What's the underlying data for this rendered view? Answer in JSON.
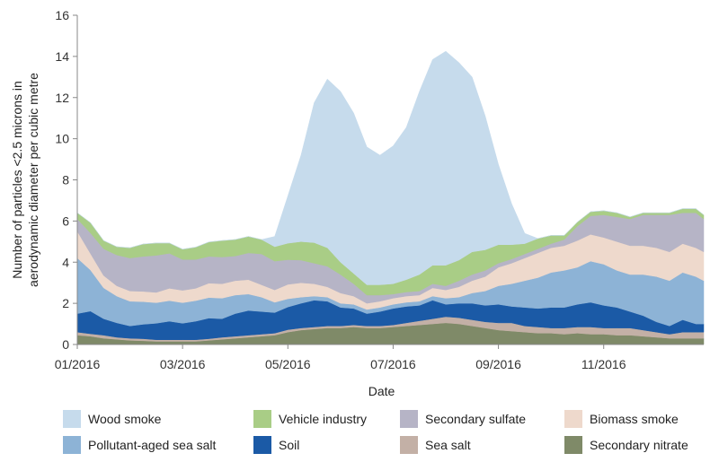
{
  "chart_data": {
    "type": "area",
    "stacked": true,
    "xlabel": "Date",
    "ylabel_line1": "Number of particles <2.5 microns in",
    "ylabel_line2": "aerodynamic diameter per cubic metre",
    "ylim": [
      0,
      16
    ],
    "yticks": [
      "0",
      "2",
      "4",
      "6",
      "8",
      "10",
      "12",
      "14",
      "16"
    ],
    "xlim": [
      0,
      11.9
    ],
    "xticks": [
      {
        "pos": 0,
        "label": "01/2016"
      },
      {
        "pos": 2,
        "label": "03/2016"
      },
      {
        "pos": 4,
        "label": "05/2016"
      },
      {
        "pos": 6,
        "label": "07/2016"
      },
      {
        "pos": 8,
        "label": "09/2016"
      },
      {
        "pos": 10,
        "label": "11/2016"
      }
    ],
    "x_unit": "months since 01/2016",
    "x": [
      0,
      0.25,
      0.5,
      0.75,
      1,
      1.25,
      1.5,
      1.75,
      2,
      2.25,
      2.5,
      2.75,
      3,
      3.25,
      3.5,
      3.75,
      4,
      4.25,
      4.5,
      4.75,
      5,
      5.25,
      5.5,
      5.75,
      6,
      6.25,
      6.5,
      6.75,
      7,
      7.25,
      7.5,
      7.75,
      8,
      8.25,
      8.5,
      8.75,
      9,
      9.25,
      9.5,
      9.75,
      10,
      10.25,
      10.5,
      10.75,
      11,
      11.25,
      11.5,
      11.75,
      11.9
    ],
    "series": [
      {
        "name": "Secondary nitrate",
        "color": "#7f8a68",
        "values": [
          0.45,
          0.4,
          0.3,
          0.25,
          0.2,
          0.18,
          0.15,
          0.15,
          0.15,
          0.15,
          0.2,
          0.25,
          0.3,
          0.35,
          0.4,
          0.45,
          0.6,
          0.7,
          0.75,
          0.8,
          0.8,
          0.85,
          0.8,
          0.8,
          0.85,
          0.9,
          0.95,
          1.0,
          1.05,
          1.0,
          0.9,
          0.8,
          0.7,
          0.65,
          0.6,
          0.55,
          0.55,
          0.5,
          0.55,
          0.5,
          0.5,
          0.45,
          0.45,
          0.4,
          0.35,
          0.3,
          0.3,
          0.3,
          0.3
        ]
      },
      {
        "name": "Sea salt",
        "color": "#c3b0a6",
        "values": [
          0.15,
          0.12,
          0.15,
          0.1,
          0.1,
          0.1,
          0.08,
          0.08,
          0.08,
          0.08,
          0.08,
          0.1,
          0.1,
          0.1,
          0.1,
          0.1,
          0.12,
          0.1,
          0.1,
          0.1,
          0.1,
          0.1,
          0.1,
          0.1,
          0.1,
          0.15,
          0.2,
          0.25,
          0.3,
          0.3,
          0.3,
          0.3,
          0.35,
          0.4,
          0.3,
          0.3,
          0.25,
          0.3,
          0.3,
          0.35,
          0.3,
          0.35,
          0.35,
          0.3,
          0.25,
          0.2,
          0.3,
          0.3,
          0.3
        ]
      },
      {
        "name": "Soil",
        "color": "#1b5aa6",
        "values": [
          0.9,
          1.1,
          0.8,
          0.7,
          0.6,
          0.7,
          0.8,
          0.9,
          0.8,
          0.9,
          1.0,
          0.9,
          1.1,
          1.2,
          1.1,
          1.0,
          1.1,
          1.2,
          1.3,
          1.2,
          0.9,
          0.8,
          0.6,
          0.7,
          0.8,
          0.8,
          0.75,
          0.9,
          0.6,
          0.7,
          0.8,
          0.8,
          0.9,
          0.8,
          0.9,
          0.9,
          1.0,
          1.0,
          1.1,
          1.2,
          1.1,
          1.0,
          0.8,
          0.7,
          0.5,
          0.4,
          0.6,
          0.4,
          0.4
        ]
      },
      {
        "name": "Pollutant-aged sea salt",
        "color": "#8db3d6",
        "values": [
          2.7,
          2.0,
          1.5,
          1.3,
          1.2,
          1.1,
          1.0,
          1.0,
          1.0,
          1.0,
          1.0,
          1.0,
          0.9,
          0.8,
          0.7,
          0.5,
          0.4,
          0.3,
          0.2,
          0.2,
          0.2,
          0.2,
          0.2,
          0.2,
          0.2,
          0.2,
          0.2,
          0.2,
          0.3,
          0.3,
          0.5,
          0.7,
          0.9,
          1.1,
          1.3,
          1.5,
          1.7,
          1.8,
          1.8,
          2.0,
          2.0,
          1.8,
          1.8,
          2.0,
          2.2,
          2.2,
          2.3,
          2.3,
          2.1
        ]
      },
      {
        "name": "Biomass smoke",
        "color": "#eed9cc",
        "values": [
          1.3,
          0.8,
          0.6,
          0.5,
          0.5,
          0.5,
          0.5,
          0.6,
          0.6,
          0.6,
          0.7,
          0.7,
          0.7,
          0.7,
          0.6,
          0.6,
          0.7,
          0.7,
          0.6,
          0.5,
          0.5,
          0.4,
          0.3,
          0.3,
          0.3,
          0.3,
          0.3,
          0.4,
          0.4,
          0.5,
          0.6,
          0.7,
          0.9,
          1.0,
          1.1,
          1.2,
          1.2,
          1.2,
          1.3,
          1.3,
          1.3,
          1.4,
          1.4,
          1.4,
          1.4,
          1.4,
          1.4,
          1.4,
          1.4
        ]
      },
      {
        "name": "Secondary sulfate",
        "color": "#b6b4c6",
        "values": [
          0.6,
          1.0,
          1.3,
          1.5,
          1.6,
          1.7,
          1.8,
          1.7,
          1.5,
          1.4,
          1.3,
          1.3,
          1.2,
          1.3,
          1.5,
          1.4,
          1.2,
          1.1,
          1.0,
          1.0,
          0.9,
          0.6,
          0.4,
          0.3,
          0.2,
          0.2,
          0.2,
          0.2,
          0.2,
          0.3,
          0.3,
          0.3,
          0.2,
          0.2,
          0.2,
          0.2,
          0.2,
          0.3,
          0.7,
          0.9,
          1.1,
          1.2,
          1.3,
          1.5,
          1.6,
          1.8,
          1.5,
          1.7,
          1.6
        ]
      },
      {
        "name": "Vehicle industry",
        "color": "#a9cd86",
        "values": [
          0.3,
          0.5,
          0.4,
          0.4,
          0.5,
          0.6,
          0.6,
          0.5,
          0.5,
          0.6,
          0.7,
          0.8,
          0.8,
          0.8,
          0.7,
          0.7,
          0.8,
          0.9,
          1.0,
          0.9,
          0.6,
          0.5,
          0.5,
          0.5,
          0.5,
          0.6,
          0.8,
          0.9,
          1.0,
          1.0,
          1.1,
          1.0,
          0.9,
          0.7,
          0.5,
          0.5,
          0.4,
          0.2,
          0.2,
          0.2,
          0.2,
          0.2,
          0.1,
          0.1,
          0.1,
          0.1,
          0.2,
          0.2,
          0.2
        ]
      },
      {
        "name": "Wood smoke",
        "color": "#c6dbec",
        "values": [
          0,
          0,
          0,
          0,
          0,
          0,
          0,
          0,
          0,
          0,
          0,
          0,
          0,
          0,
          0,
          0.5,
          2.3,
          4.2,
          6.8,
          8.2,
          8.3,
          7.8,
          6.7,
          6.3,
          6.7,
          7.4,
          8.9,
          10.0,
          10.4,
          9.6,
          8.5,
          6.5,
          3.9,
          2.0,
          0.5,
          0,
          0,
          0,
          0,
          0,
          0,
          0,
          0,
          0,
          0,
          0,
          0,
          0,
          0
        ]
      }
    ],
    "legend": {
      "placement": "bottom",
      "entries": [
        {
          "label": "Wood smoke",
          "color": "#c6dbec"
        },
        {
          "label": "Vehicle industry",
          "color": "#a9cd86"
        },
        {
          "label": "Secondary sulfate",
          "color": "#b6b4c6"
        },
        {
          "label": "Biomass smoke",
          "color": "#eed9cc"
        },
        {
          "label": "Pollutant-aged sea salt",
          "color": "#8db3d6"
        },
        {
          "label": "Soil",
          "color": "#1b5aa6"
        },
        {
          "label": "Sea salt",
          "color": "#c3b0a6"
        },
        {
          "label": "Secondary nitrate",
          "color": "#7f8a68"
        }
      ]
    }
  }
}
